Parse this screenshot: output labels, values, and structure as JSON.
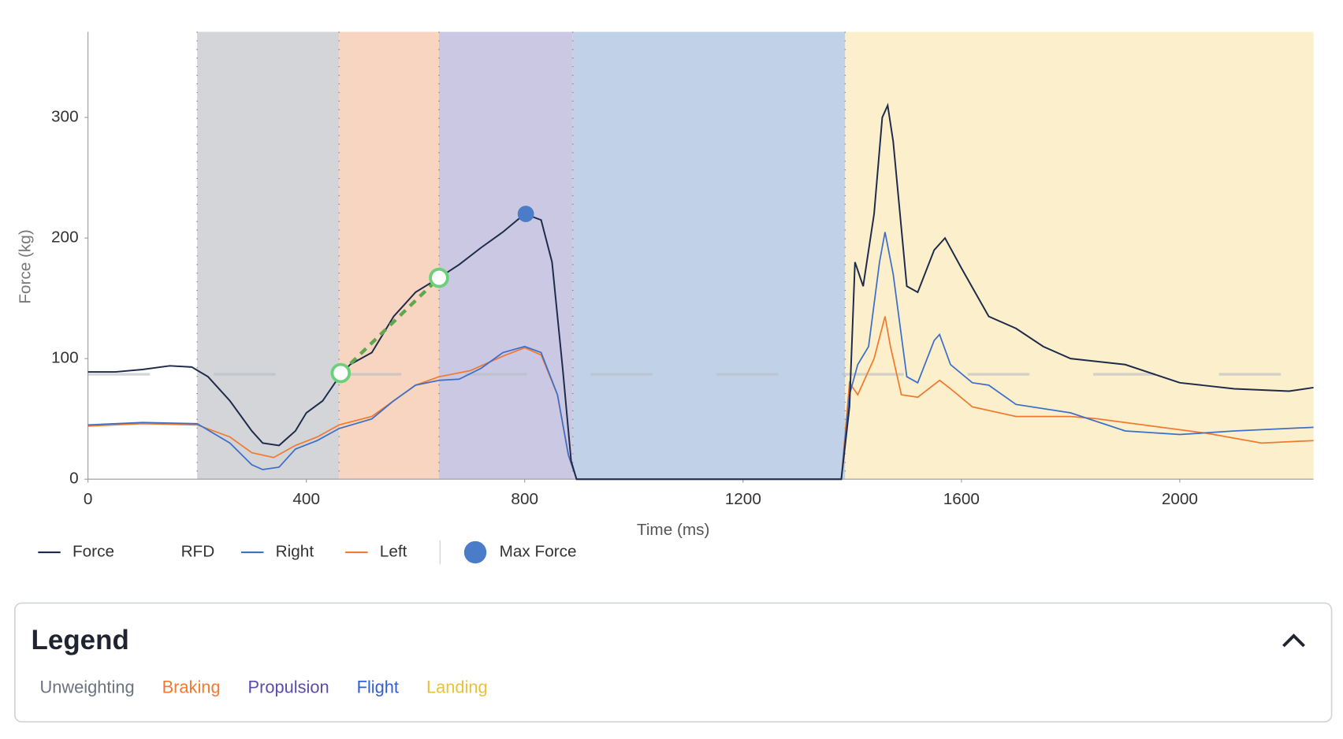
{
  "chart_data": {
    "type": "line",
    "xlabel": "Time (ms)",
    "ylabel": "Force (kg)",
    "xlim": [
      0,
      2245
    ],
    "ylim": [
      0,
      371
    ],
    "xticks": [
      0,
      400,
      800,
      1200,
      1600,
      2000
    ],
    "yticks": [
      0,
      100,
      200,
      300
    ],
    "reference_line": 87,
    "phases": [
      {
        "name": "Unweighting",
        "start": 200,
        "end": 460,
        "color": "#d4d5d9",
        "text_color": "#6b7280"
      },
      {
        "name": "Braking",
        "start": 460,
        "end": 643,
        "color": "#f8d5c0",
        "text_color": "#f07a30"
      },
      {
        "name": "Propulsion",
        "start": 643,
        "end": 888,
        "color": "#cbc8e3",
        "text_color": "#5b4bab"
      },
      {
        "name": "Flight",
        "start": 888,
        "end": 1387,
        "color": "#c1d2e8",
        "text_color": "#2f5fd0"
      },
      {
        "name": "Landing",
        "start": 1387,
        "end": 2245,
        "color": "#fcf0cc",
        "text_color": "#e8c23a"
      }
    ],
    "series": [
      {
        "name": "Force",
        "color": "#1e2a4a",
        "x": [
          0,
          50,
          100,
          150,
          190,
          220,
          260,
          300,
          320,
          350,
          380,
          400,
          430,
          460,
          480,
          520,
          560,
          600,
          643,
          680,
          720,
          760,
          800,
          830,
          850,
          870,
          885,
          895,
          1000,
          1200,
          1380,
          1395,
          1405,
          1420,
          1440,
          1455,
          1465,
          1475,
          1500,
          1520,
          1550,
          1570,
          1600,
          1650,
          1700,
          1750,
          1800,
          1900,
          2000,
          2100,
          2200,
          2245
        ],
        "values": [
          89,
          89,
          91,
          94,
          93,
          85,
          65,
          40,
          30,
          28,
          40,
          55,
          65,
          85,
          95,
          105,
          135,
          155,
          167,
          178,
          192,
          205,
          220,
          215,
          180,
          90,
          15,
          0,
          0,
          0,
          0,
          60,
          180,
          160,
          220,
          300,
          310,
          280,
          160,
          155,
          190,
          200,
          175,
          135,
          125,
          110,
          100,
          95,
          80,
          75,
          73,
          76
        ]
      },
      {
        "name": "Right",
        "color": "#3d6fc9",
        "x": [
          0,
          100,
          200,
          260,
          300,
          320,
          350,
          380,
          420,
          460,
          520,
          560,
          600,
          643,
          680,
          720,
          760,
          800,
          830,
          860,
          880,
          895,
          1380,
          1395,
          1410,
          1430,
          1450,
          1460,
          1475,
          1500,
          1520,
          1550,
          1560,
          1580,
          1620,
          1650,
          1700,
          1800,
          1900,
          2000,
          2100,
          2245
        ],
        "values": [
          45,
          47,
          46,
          30,
          12,
          8,
          10,
          25,
          32,
          42,
          50,
          65,
          78,
          82,
          83,
          92,
          105,
          110,
          105,
          70,
          20,
          0,
          0,
          70,
          95,
          110,
          180,
          205,
          170,
          85,
          80,
          115,
          120,
          95,
          80,
          78,
          62,
          55,
          40,
          37,
          40,
          43
        ]
      },
      {
        "name": "Left",
        "color": "#f07a30",
        "x": [
          0,
          100,
          200,
          260,
          300,
          340,
          380,
          420,
          460,
          520,
          560,
          600,
          643,
          700,
          760,
          800,
          830,
          860,
          880,
          895,
          1380,
          1395,
          1410,
          1440,
          1460,
          1470,
          1490,
          1520,
          1560,
          1580,
          1620,
          1700,
          1800,
          1850,
          1950,
          2050,
          2150,
          2245
        ],
        "values": [
          44,
          46,
          45,
          35,
          22,
          18,
          28,
          35,
          45,
          52,
          65,
          78,
          85,
          90,
          102,
          109,
          103,
          70,
          20,
          0,
          0,
          80,
          70,
          100,
          135,
          110,
          70,
          68,
          82,
          75,
          60,
          52,
          52,
          50,
          44,
          38,
          30,
          32
        ]
      }
    ],
    "rfd": {
      "name": "RFD",
      "color": "#5fa84f",
      "x": [
        463,
        643
      ],
      "values": [
        88,
        167
      ]
    },
    "max_force": {
      "name": "Max Force",
      "color": "#4a7cc9",
      "x": 802,
      "value": 220
    },
    "phase_legend_title": "Legend"
  }
}
